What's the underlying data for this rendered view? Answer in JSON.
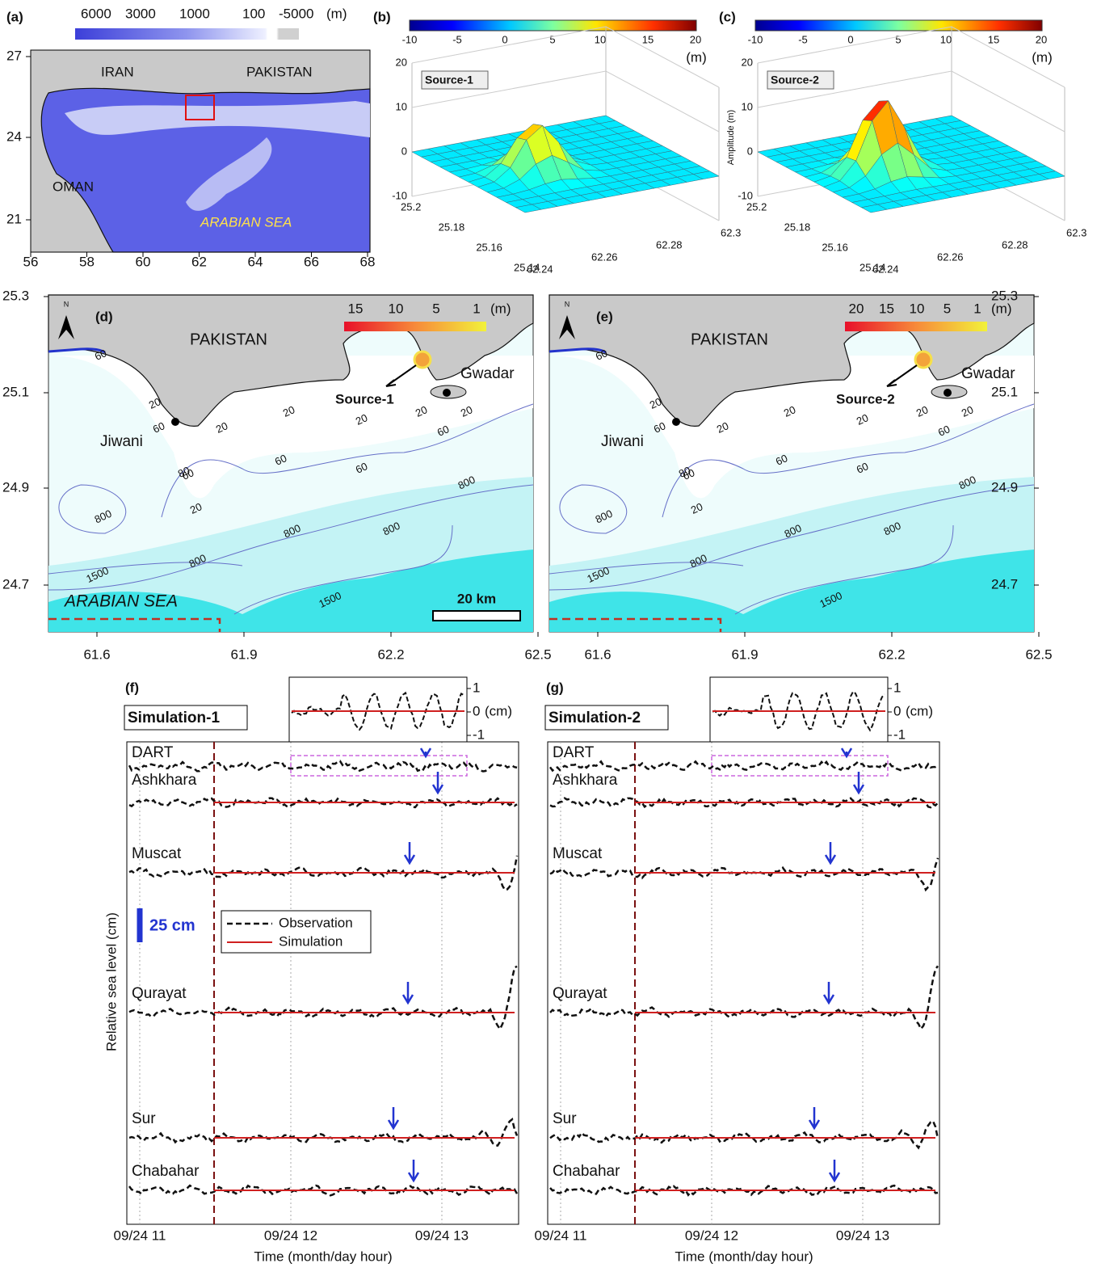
{
  "panel_a": {
    "label": "(a)",
    "colorbar_labels": [
      "6000",
      "3000",
      "1000",
      "100",
      "-5000"
    ],
    "unit": "(m)",
    "y_ticks": [
      "27",
      "24",
      "21"
    ],
    "x_ticks": [
      "56",
      "58",
      "60",
      "62",
      "64",
      "66",
      "68"
    ],
    "places": [
      "IRAN",
      "PAKISTAN",
      "OMAN",
      "ARABIAN  SEA"
    ]
  },
  "panel_b": {
    "label": "(b)",
    "colorbar_ticks": [
      "-10",
      "-5",
      "0",
      "5",
      "10",
      "15",
      "20"
    ],
    "unit": "(m)",
    "source": "Source-1",
    "z_ticks": [
      "20",
      "10",
      "0",
      "-10"
    ],
    "lat_ticks": [
      "25.2",
      "25.18",
      "25.16",
      "25.14"
    ],
    "lon_ticks": [
      "62.24",
      "62.26",
      "62.28",
      "62.3"
    ]
  },
  "panel_c": {
    "label": "(c)",
    "colorbar_ticks": [
      "-10",
      "-5",
      "0",
      "5",
      "10",
      "15",
      "20"
    ],
    "unit": "(m)",
    "source": "Source-2",
    "z_label": "Amplitude (m)",
    "z_ticks": [
      "20",
      "10",
      "0",
      "-10"
    ],
    "lat_ticks": [
      "25.2",
      "25.18",
      "25.16",
      "25.14"
    ],
    "lon_ticks": [
      "62.24",
      "62.26",
      "62.28",
      "62.3"
    ]
  },
  "panel_d": {
    "label": "(d)",
    "north": "N",
    "country": "PAKISTAN",
    "towns": [
      "Jiwani",
      "Gwadar"
    ],
    "source": "Source-1",
    "colorbar_ticks": [
      "15",
      "10",
      "5",
      "1"
    ],
    "unit": "(m)",
    "sea": "ARABIAN  SEA",
    "scale": "20 km",
    "contour_labels": [
      "60",
      "20",
      "60",
      "20",
      "80",
      "20",
      "60",
      "20",
      "20",
      "20",
      "60",
      "20",
      "60",
      "60",
      "800",
      "800",
      "800",
      "800",
      "800",
      "1500",
      "1500"
    ],
    "y_ticks": [
      "25.3",
      "25.1",
      "24.9",
      "24.7"
    ],
    "x_ticks": [
      "61.6",
      "61.9",
      "62.2",
      "62.5"
    ]
  },
  "panel_e": {
    "label": "(e)",
    "north": "N",
    "country": "PAKISTAN",
    "towns": [
      "Jiwani",
      "Gwadar"
    ],
    "source": "Source-2",
    "colorbar_ticks": [
      "20",
      "15",
      "10",
      "5",
      "1"
    ],
    "unit": "(m)",
    "contour_labels": [
      "60",
      "20",
      "60",
      "20",
      "80",
      "20",
      "60",
      "20",
      "20",
      "20",
      "60",
      "20",
      "60",
      "60",
      "800",
      "800",
      "800",
      "800",
      "800",
      "1500",
      "1500"
    ],
    "y_ticks": [
      "25.3",
      "25.1",
      "24.9",
      "24.7"
    ],
    "x_ticks": [
      "61.6",
      "61.9",
      "62.2",
      "62.5"
    ]
  },
  "panel_f": {
    "label": "(f)",
    "title": "Simulation-1",
    "stations": [
      "DART",
      "Ashkhara",
      "Muscat",
      "Qurayat",
      "Sur",
      "Chabahar"
    ],
    "inset_ticks": [
      "1",
      "0",
      "-1"
    ],
    "inset_unit": "(cm)",
    "scale_bar": "25 cm",
    "legend": [
      "Observation",
      "Simulation"
    ],
    "y_label": "Relative sea level (cm)",
    "x_ticks": [
      "09/24 11",
      "09/24 12",
      "09/24 13"
    ],
    "x_label": "Time (month/day hour)"
  },
  "panel_g": {
    "label": "(g)",
    "title": "Simulation-2",
    "stations": [
      "DART",
      "Ashkhara",
      "Muscat",
      "Qurayat",
      "Sur",
      "Chabahar"
    ],
    "inset_ticks": [
      "1",
      "0",
      "-1"
    ],
    "inset_unit": "(cm)",
    "x_ticks": [
      "09/24 11",
      "09/24 12",
      "09/24 13"
    ],
    "x_label": "Time (month/day hour)"
  }
}
